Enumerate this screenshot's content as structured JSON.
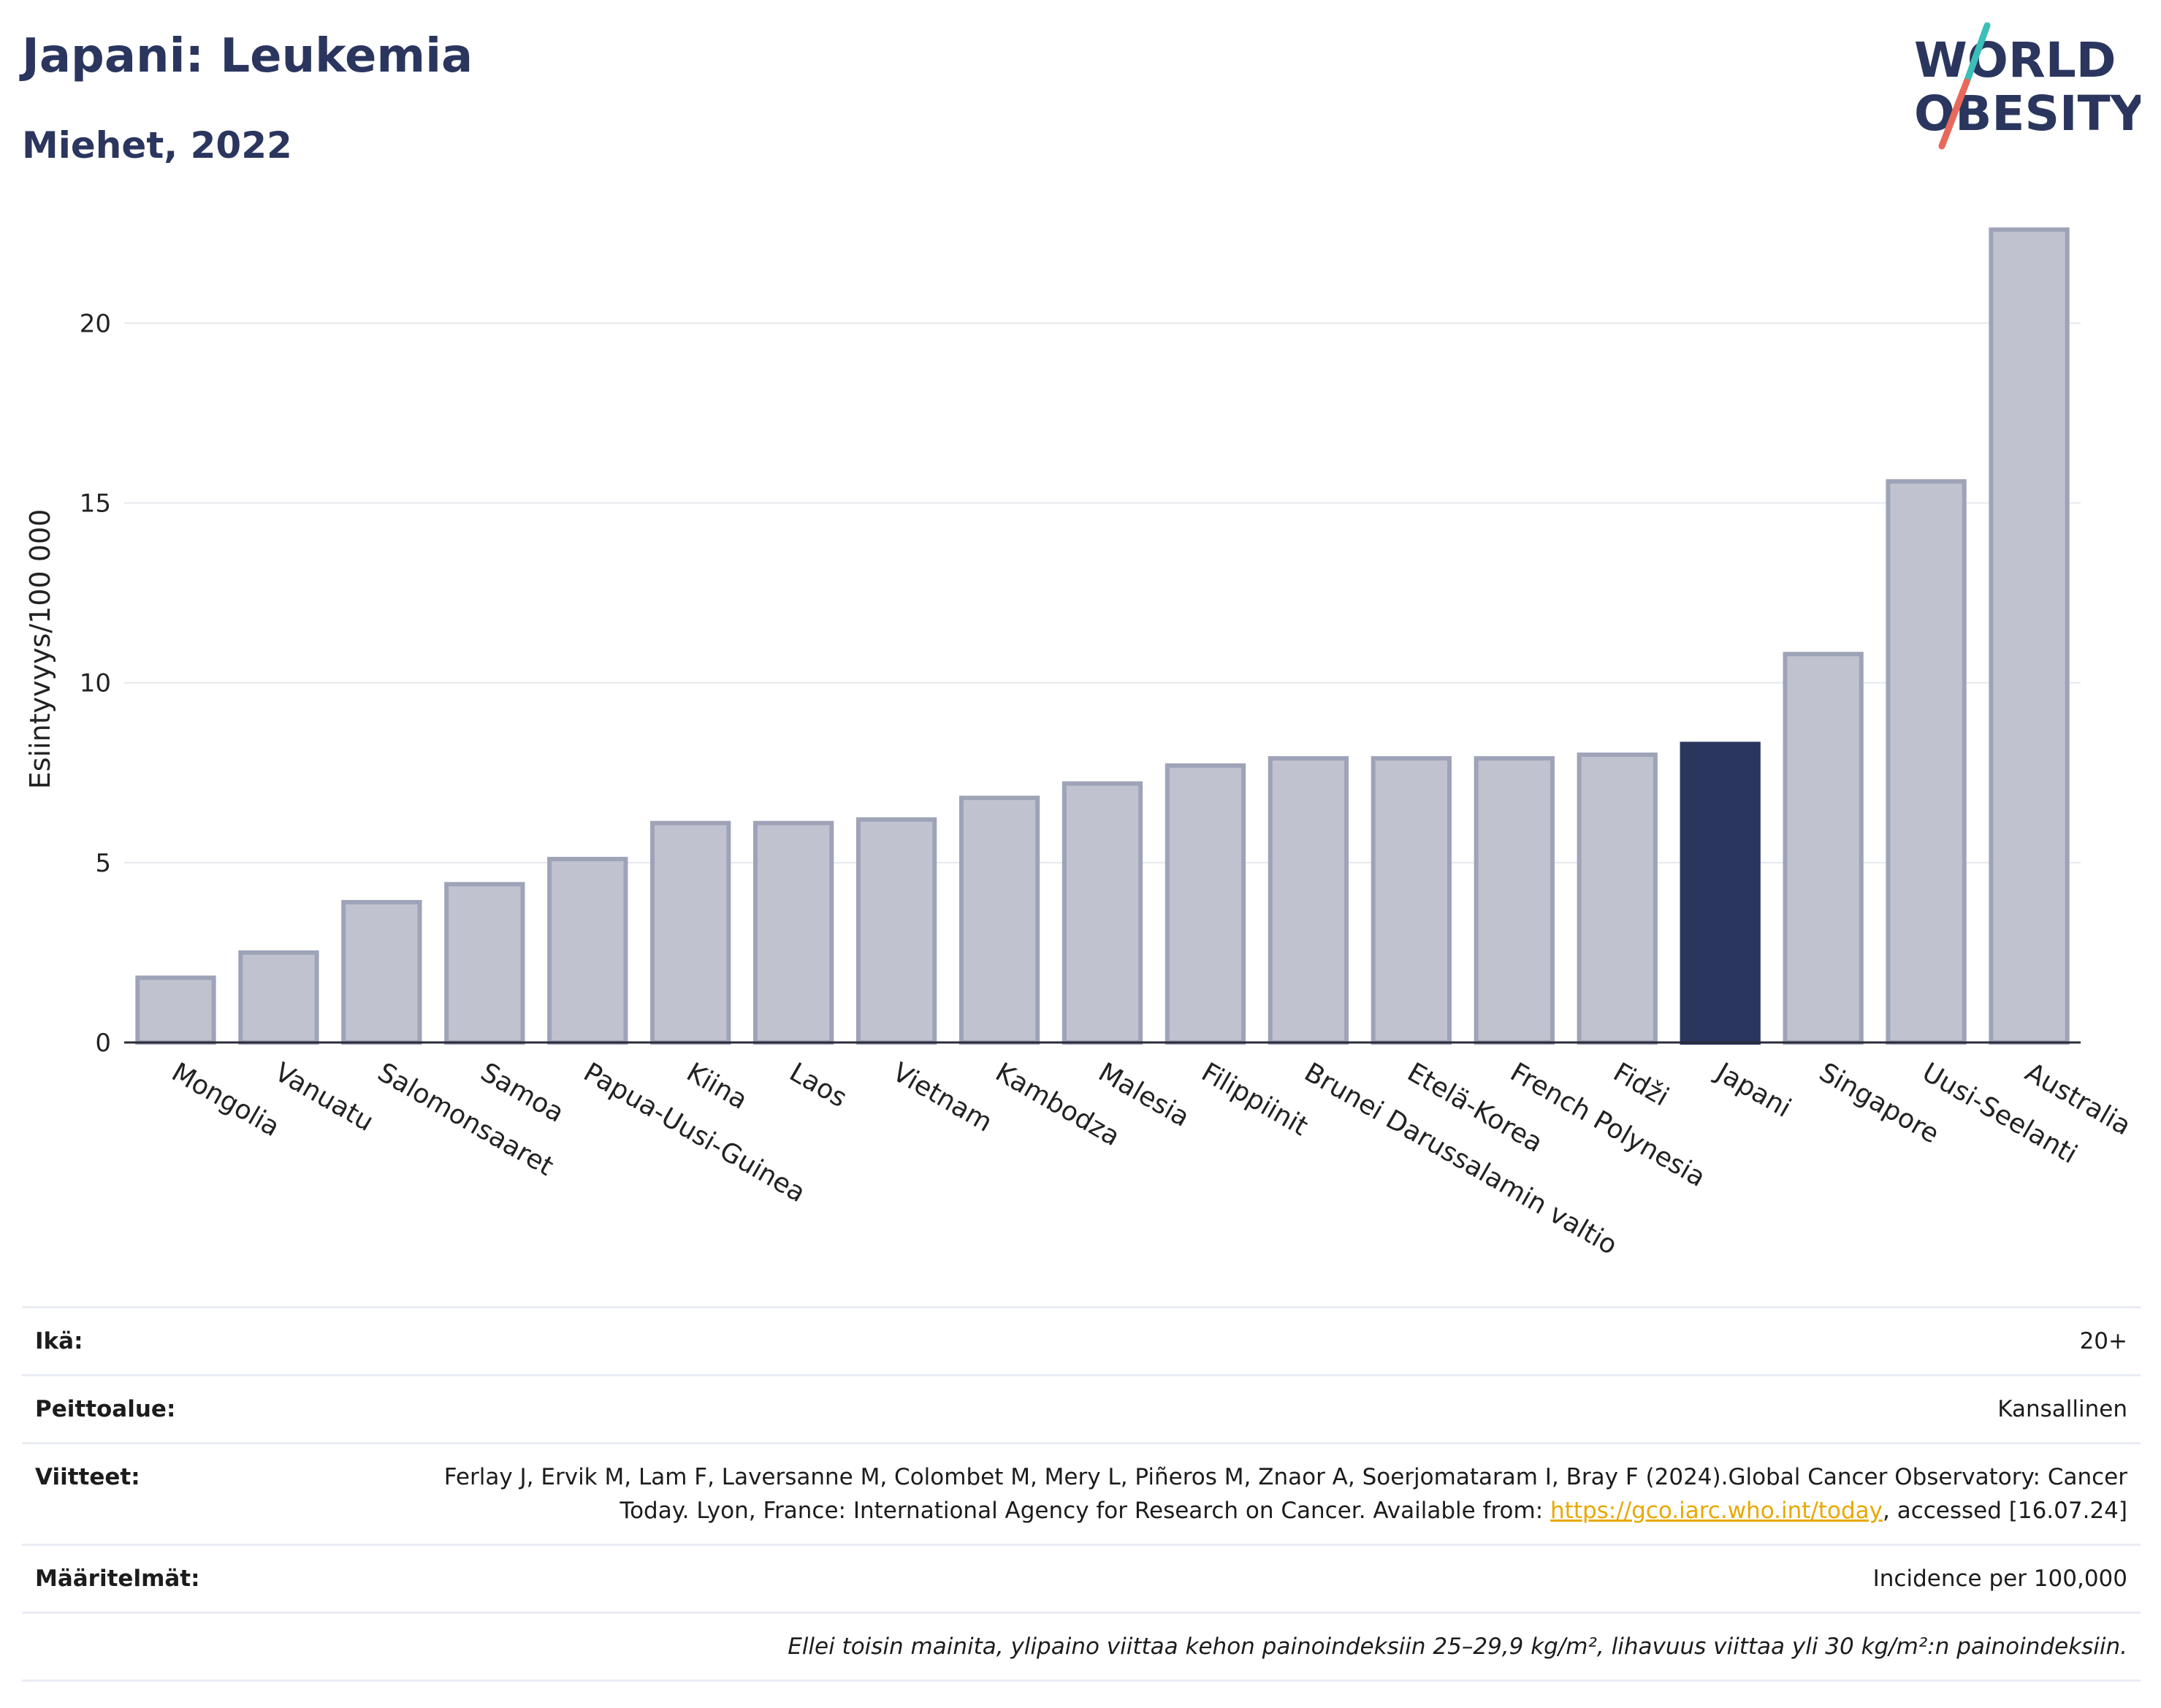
{
  "header": {
    "title": "Japani: Leukemia",
    "subtitle": "Miehet, 2022"
  },
  "logo": {
    "line1": "WORLD",
    "line2": "OBESITY",
    "colors": {
      "text": "#2b365f",
      "slash_top": "#3bbfb7",
      "slash_bottom": "#e8695a"
    }
  },
  "chart_data": {
    "type": "bar",
    "ylabel": "Esiintyvyys/100 000",
    "ylim": [
      0,
      23.5
    ],
    "yticks": [
      0,
      5,
      10,
      15,
      20
    ],
    "grid": true,
    "highlight": "Japani",
    "colors": {
      "bar": "#c0c3cf",
      "bar_edge": "#9ea3b8",
      "highlight": "#2b365f"
    },
    "categories": [
      "Mongolia",
      "Vanuatu",
      "Salomonsaaret",
      "Samoa",
      "Papua-Uusi-Guinea",
      "Kiina",
      "Laos",
      "Vietnam",
      "Kambodza",
      "Malesia",
      "Filippiinit",
      "Brunei Darussalamin valtio",
      "Etelä-Korea",
      "French Polynesia",
      "Fidži",
      "Japani",
      "Singapore",
      "Uusi-Seelanti",
      "Australia"
    ],
    "values": [
      1.8,
      2.5,
      3.9,
      4.4,
      5.1,
      6.1,
      6.1,
      6.2,
      6.8,
      7.2,
      7.7,
      7.9,
      7.9,
      7.9,
      8.0,
      8.3,
      10.8,
      15.6,
      22.6
    ]
  },
  "info": {
    "age": {
      "label": "Ikä:",
      "value": "20+"
    },
    "coverage": {
      "label": "Peittoalue:",
      "value": "Kansallinen"
    },
    "references": {
      "label": "Viitteet:",
      "text_before": "Ferlay J, Ervik M, Lam F, Laversanne M, Colombet M, Mery L, Piñeros M, Znaor A, Soerjomataram I, Bray F (2024).Global Cancer Observatory: Cancer Today. Lyon, France: International Agency for Research on Cancer. Available from: ",
      "link": "https://gco.iarc.who.int/today",
      "text_after": ", accessed [16.07.24]"
    },
    "definitions": {
      "label": "Määritelmät:",
      "value": "Incidence per 100,000"
    },
    "note": "Ellei toisin mainita, ylipaino viittaa kehon painoindeksiin 25–29,9 kg/m², lihavuus viittaa yli 30 kg/m²:n painoindeksiin."
  }
}
